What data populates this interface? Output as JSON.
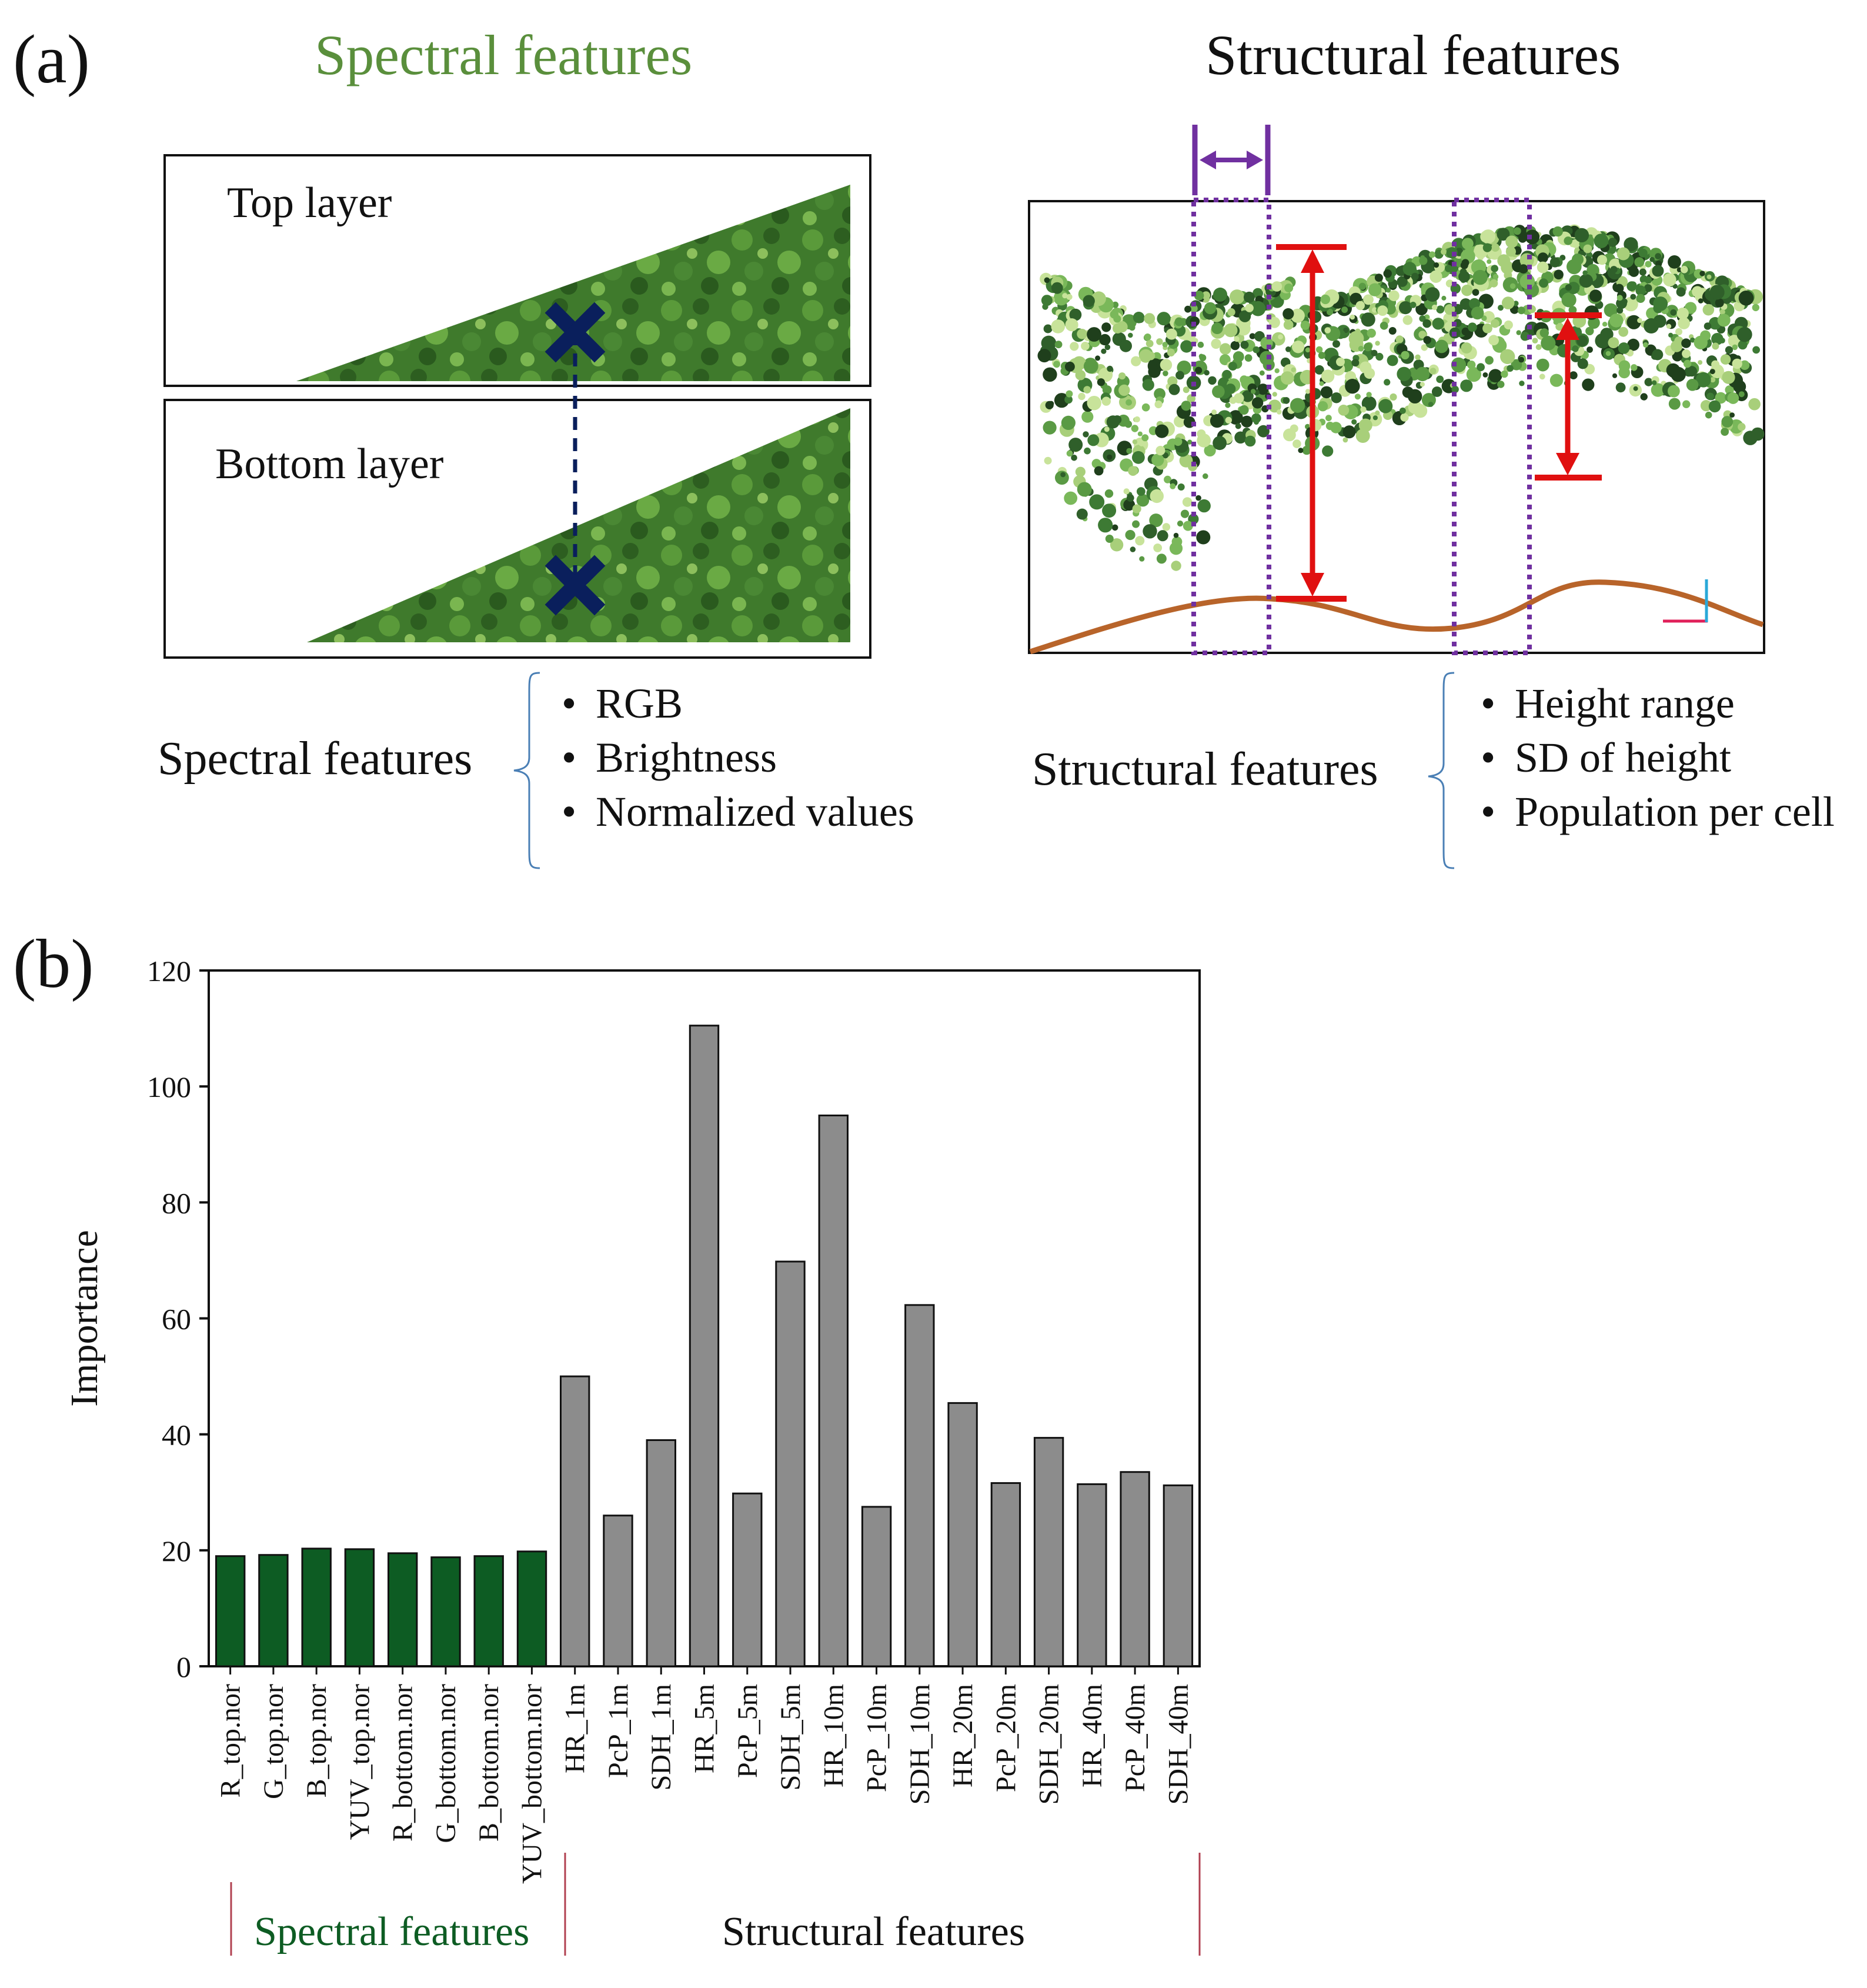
{
  "panel_a": {
    "label": "(a)",
    "spectral_heading": "Spectral features",
    "structural_heading": "Structural features",
    "top_layer_label": "Top layer",
    "bottom_layer_label": "Bottom layer",
    "spectral_list_title": "Spectral features",
    "spectral_items": [
      "RGB",
      "Brightness",
      "Normalized values"
    ],
    "structural_list_title": "Structural features",
    "structural_items": [
      "Height range",
      "SD of height",
      "Population per cell"
    ]
  },
  "panel_b": {
    "label": "(b)",
    "spectral_group_label": "Spectral features",
    "structural_group_label": "Structural features"
  },
  "colors": {
    "spectral_green": "#5a8f3c",
    "spectral_bar": "#0d5c23",
    "structural_bar": "#8c8c8c",
    "marker_blue": "#0a1f5c",
    "arrow_red": "#e01010",
    "purple": "#7030a0",
    "ground_brown": "#b8642a"
  },
  "chart_data": {
    "type": "bar",
    "title": "",
    "xlabel": "",
    "ylabel": "Importance",
    "ylim": [
      0,
      120
    ],
    "yticks": [
      0,
      20,
      40,
      60,
      80,
      100,
      120
    ],
    "grid": false,
    "categories": [
      "R_top.nor",
      "G_top.nor",
      "B_top.nor",
      "YUV_top.nor",
      "R_bottom.nor",
      "G_bottom.nor",
      "B_bottom.nor",
      "YUV_bottom.nor",
      "HR_1m",
      "PcP_1m",
      "SDH_1m",
      "HR_5m",
      "PcP_5m",
      "SDH_5m",
      "HR_10m",
      "PcP_10m",
      "SDH_10m",
      "HR_20m",
      "PcP_20m",
      "SDH_20m",
      "HR_40m",
      "PcP_40m",
      "SDH_40m"
    ],
    "values": [
      19,
      19.2,
      20.3,
      20.2,
      19.5,
      18.8,
      19,
      19.8,
      50,
      26,
      39,
      110.5,
      29.8,
      69.8,
      95,
      27.5,
      62.3,
      45.4,
      31.6,
      39.4,
      31.4,
      33.5,
      31.2
    ],
    "groups": [
      "spectral",
      "spectral",
      "spectral",
      "spectral",
      "spectral",
      "spectral",
      "spectral",
      "spectral",
      "structural",
      "structural",
      "structural",
      "structural",
      "structural",
      "structural",
      "structural",
      "structural",
      "structural",
      "structural",
      "structural",
      "structural",
      "structural",
      "structural",
      "structural"
    ]
  }
}
